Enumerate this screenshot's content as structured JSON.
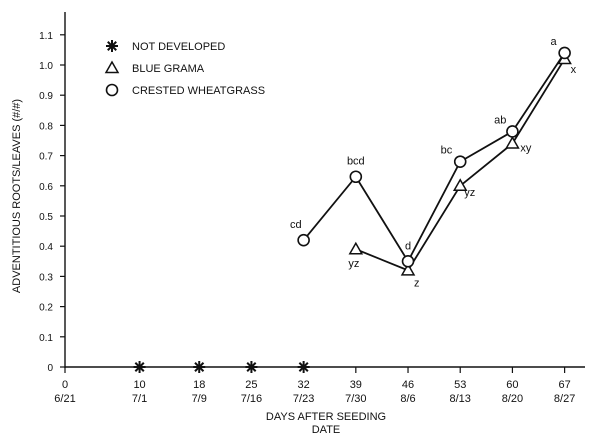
{
  "chart_data": {
    "type": "line",
    "xlabel_line1": "DAYS AFTER SEEDING",
    "xlabel_line2": "DATE",
    "ylabel": "ADVENTITIOUS ROOTS/LEAVES (#/#)",
    "xlim": [
      0,
      74
    ],
    "ylim": [
      0,
      1.15
    ],
    "x_ticks": [
      {
        "day": 0,
        "label": "0",
        "date": "6/21"
      },
      {
        "day": 10,
        "label": "10",
        "date": "7/1"
      },
      {
        "day": 18,
        "label": "18",
        "date": "7/9"
      },
      {
        "day": 25,
        "label": "25",
        "date": "7/16"
      },
      {
        "day": 32,
        "label": "32",
        "date": "7/23"
      },
      {
        "day": 39,
        "label": "39",
        "date": "7/30"
      },
      {
        "day": 46,
        "label": "46",
        "date": "8/6"
      },
      {
        "day": 53,
        "label": "53",
        "date": "8/13"
      },
      {
        "day": 60,
        "label": "60",
        "date": "8/20"
      },
      {
        "day": 67,
        "label": "67",
        "date": "8/27"
      }
    ],
    "y_ticks": [
      {
        "v": 0,
        "label": "0"
      },
      {
        "v": 0.1,
        "label": "0.1"
      },
      {
        "v": 0.2,
        "label": "0.2"
      },
      {
        "v": 0.3,
        "label": "0.3"
      },
      {
        "v": 0.4,
        "label": "0.4"
      },
      {
        "v": 0.5,
        "label": "0.5"
      },
      {
        "v": 0.6,
        "label": "0.6"
      },
      {
        "v": 0.7,
        "label": "0.7"
      },
      {
        "v": 0.8,
        "label": "0.8"
      },
      {
        "v": 0.9,
        "label": "0.9"
      },
      {
        "v": 1.0,
        "label": "1.0"
      },
      {
        "v": 1.1,
        "label": "1.1"
      }
    ],
    "legend_position": "top-left",
    "series": [
      {
        "name": "NOT DEVELOPED",
        "marker": "star",
        "connected": false,
        "points": [
          {
            "x": 10,
            "y": 0,
            "label": ""
          },
          {
            "x": 18,
            "y": 0,
            "label": ""
          },
          {
            "x": 25,
            "y": 0,
            "label": ""
          },
          {
            "x": 32,
            "y": 0,
            "label": ""
          }
        ]
      },
      {
        "name": "BLUE GRAMA",
        "marker": "triangle",
        "connected": true,
        "points": [
          {
            "x": 39,
            "y": 0.39,
            "label": "yz"
          },
          {
            "x": 46,
            "y": 0.32,
            "label": "z"
          },
          {
            "x": 53,
            "y": 0.6,
            "label": "yz"
          },
          {
            "x": 60,
            "y": 0.74,
            "label": "xy"
          },
          {
            "x": 67,
            "y": 1.02,
            "label": "x"
          }
        ]
      },
      {
        "name": "CRESTED WHEATGRASS",
        "marker": "circle",
        "connected": true,
        "points": [
          {
            "x": 32,
            "y": 0.42,
            "label": "cd"
          },
          {
            "x": 39,
            "y": 0.63,
            "label": "bcd"
          },
          {
            "x": 46,
            "y": 0.35,
            "label": "d"
          },
          {
            "x": 53,
            "y": 0.68,
            "label": "bc"
          },
          {
            "x": 60,
            "y": 0.78,
            "label": "ab"
          },
          {
            "x": 67,
            "y": 1.04,
            "label": "a"
          }
        ]
      }
    ]
  }
}
